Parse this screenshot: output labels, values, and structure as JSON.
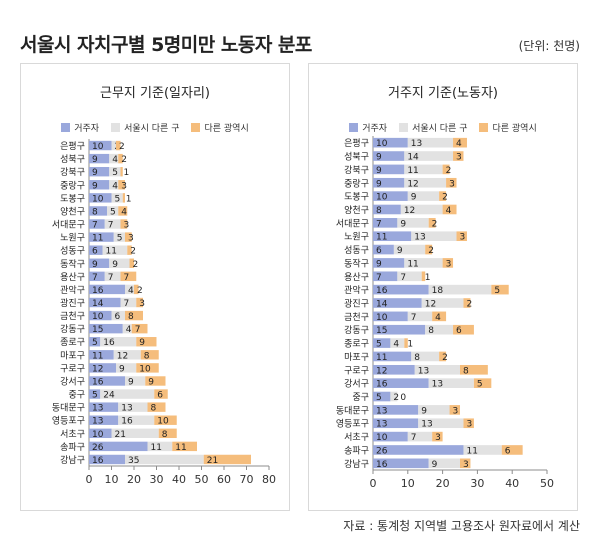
{
  "header": {
    "title": "서울시 자치구별 5명미만 노동자 분포",
    "unit": "(단위: 천명)"
  },
  "footer": {
    "source": "자료 : 통계청 지역별 고용조사 원자료에서 계산"
  },
  "colors": {
    "resident": "#9aa8dc",
    "other_gu": "#e2e2e2",
    "other_metro": "#f5bd7c",
    "axis": "#8c8c8c"
  },
  "chart_data": [
    {
      "type": "bar",
      "orientation": "horizontal",
      "stacked": true,
      "title": "근무지 기준(일자리)",
      "legend_position": "top",
      "categories": [
        "은평구",
        "성북구",
        "강북구",
        "중랑구",
        "도봉구",
        "양천구",
        "서대문구",
        "노원구",
        "성동구",
        "동작구",
        "용산구",
        "관악구",
        "광진구",
        "금천구",
        "강동구",
        "종로구",
        "마포구",
        "구로구",
        "강서구",
        "중구",
        "동대문구",
        "영등포구",
        "서초구",
        "송파구",
        "강남구"
      ],
      "series": [
        {
          "name": "거주자",
          "values": [
            10,
            9,
            9,
            9,
            10,
            8,
            7,
            11,
            6,
            9,
            7,
            16,
            14,
            10,
            15,
            5,
            11,
            12,
            16,
            5,
            13,
            13,
            10,
            26,
            16
          ]
        },
        {
          "name": "서울시 다른 구",
          "values": [
            2,
            4,
            5,
            4,
            5,
            5,
            7,
            5,
            11,
            9,
            7,
            4,
            7,
            6,
            4,
            16,
            12,
            9,
            9,
            24,
            13,
            16,
            21,
            11,
            35
          ]
        },
        {
          "name": "다른 광역시",
          "values": [
            2,
            2,
            1,
            3,
            1,
            4,
            3,
            3,
            2,
            2,
            7,
            2,
            3,
            8,
            7,
            9,
            8,
            10,
            9,
            6,
            8,
            10,
            8,
            11,
            21
          ]
        }
      ],
      "xlim": [
        0,
        80
      ],
      "xticks": [
        0,
        10,
        20,
        30,
        40,
        50,
        60,
        70,
        80
      ],
      "grid": false
    },
    {
      "type": "bar",
      "orientation": "horizontal",
      "stacked": true,
      "title": "거주지 기준(노동자)",
      "legend_position": "top",
      "categories": [
        "은평구",
        "성북구",
        "강북구",
        "중랑구",
        "도봉구",
        "양천구",
        "서대문구",
        "노원구",
        "성동구",
        "동작구",
        "용산구",
        "관악구",
        "광진구",
        "금천구",
        "강동구",
        "종로구",
        "마포구",
        "구로구",
        "강서구",
        "중구",
        "동대문구",
        "영등포구",
        "서초구",
        "송파구",
        "강남구"
      ],
      "series": [
        {
          "name": "거주자",
          "values": [
            10,
            9,
            9,
            9,
            10,
            8,
            7,
            11,
            6,
            9,
            7,
            16,
            14,
            10,
            15,
            5,
            11,
            12,
            16,
            5,
            13,
            13,
            10,
            26,
            16
          ]
        },
        {
          "name": "서울시 다른 구",
          "values": [
            13,
            14,
            11,
            12,
            9,
            12,
            9,
            13,
            9,
            11,
            7,
            18,
            12,
            7,
            8,
            4,
            8,
            13,
            13,
            2,
            9,
            13,
            7,
            11,
            9
          ]
        },
        {
          "name": "다른 광역시",
          "values": [
            4,
            3,
            2,
            3,
            2,
            4,
            2,
            3,
            2,
            3,
            1,
            5,
            2,
            4,
            6,
            1,
            2,
            8,
            5,
            0,
            3,
            3,
            3,
            6,
            3
          ]
        }
      ],
      "xlim": [
        0,
        50
      ],
      "xticks": [
        0,
        10,
        20,
        30,
        40,
        50
      ],
      "grid": false
    }
  ]
}
